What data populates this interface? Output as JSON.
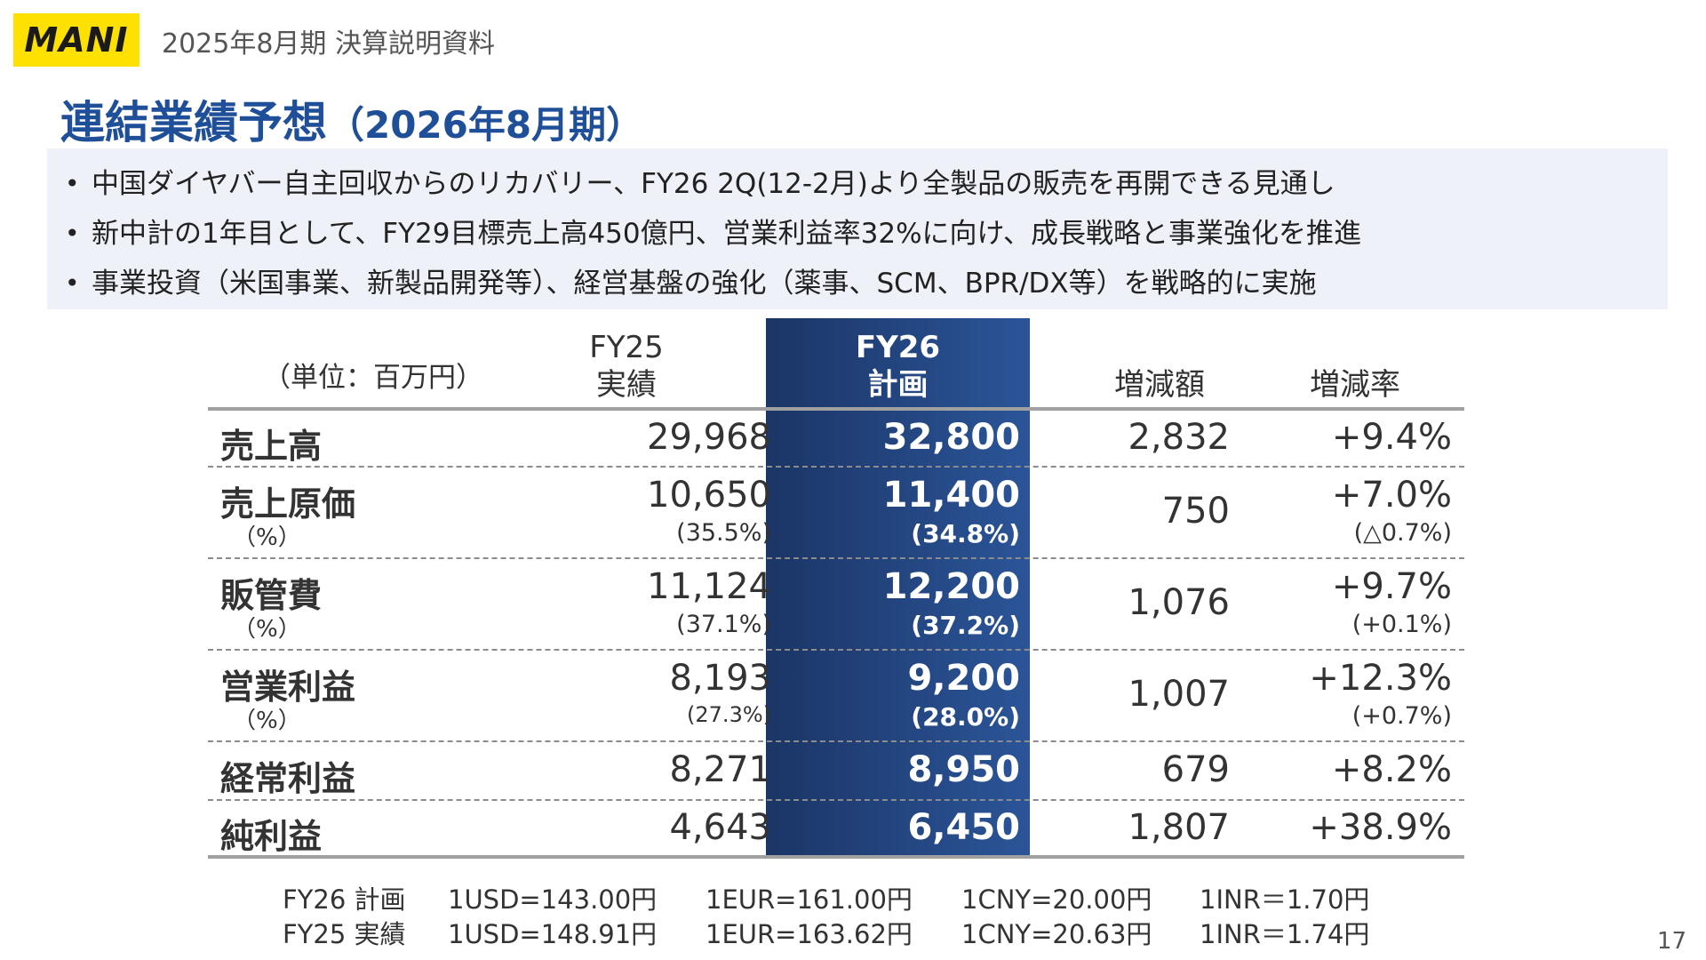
{
  "header": {
    "logo_text": "MANI",
    "document_title": "2025年8月期 決算説明資料"
  },
  "page": {
    "title": "連結業績予想",
    "title_sub": "（2026年8月期）",
    "page_number": "17"
  },
  "bullets": [
    "中国ダイヤバー自主回収からのリカバリー、FY26 2Q(12-2月)より全製品の販売を再開できる見通し",
    "新中計の1年目として、FY29目標売上高450億円、営業利益率32%に向け、成長戦略と事業強化を推進",
    "事業投資（米国事業、新製品開発等）、経営基盤の強化（薬事、SCM、BPR/DX等）を戦略的に実施"
  ],
  "table": {
    "unit_label": "（単位：百万円）",
    "col_fy25_line1": "FY25",
    "col_fy25_line2": "実績",
    "col_fy26_line1": "FY26",
    "col_fy26_line2": "計画",
    "col_diff": "増減額",
    "col_rate": "増減率",
    "rows": [
      {
        "label": "売上高",
        "fy25": "29,968",
        "fy26": "32,800",
        "diff": "2,832",
        "rate": "+9.4%"
      },
      {
        "label": "売上原価",
        "pct_label": "（%）",
        "fy25": "10,650",
        "fy25_pct": "(35.5%)",
        "fy26": "11,400",
        "fy26_pct": "(34.8%)",
        "diff": "750",
        "rate": "+7.0%",
        "rate_pct": "(△0.7%)"
      },
      {
        "label": "販管費",
        "pct_label": "（%）",
        "fy25": "11,124",
        "fy25_pct": "(37.1%)",
        "fy26": "12,200",
        "fy26_pct": "(37.2%)",
        "diff": "1,076",
        "rate": "+9.7%",
        "rate_pct": "(+0.1%)"
      },
      {
        "label": "営業利益",
        "pct_label": "（%）",
        "fy25": "8,193",
        "fy25_pct": "(27.3%)",
        "fy26": "9,200",
        "fy26_pct": "(28.0%)",
        "diff": "1,007",
        "rate": "+12.3%",
        "rate_pct": "(+0.7%)"
      },
      {
        "label": "経常利益",
        "fy25": "8,271",
        "fy26": "8,950",
        "diff": "679",
        "rate": "+8.2%"
      },
      {
        "label": "純利益",
        "fy25": "4,643",
        "fy26": "6,450",
        "diff": "1,807",
        "rate": "+38.9%"
      }
    ]
  },
  "fx_rates": [
    {
      "label": "FY26 計画",
      "usd": "1USD=143.00円",
      "eur": "1EUR=161.00円",
      "cny": "1CNY=20.00円",
      "inr": "1INR＝1.70円"
    },
    {
      "label": "FY25 実績",
      "usd": "1USD=148.91円",
      "eur": "1EUR=163.62円",
      "cny": "1CNY=20.63円",
      "inr": "1INR＝1.74円"
    }
  ],
  "colors": {
    "logo_bg": "#ffe100",
    "title": "#1f4f99",
    "bullet_bg": "#eef1f8",
    "highlight_dark": "#1b3566",
    "highlight_light": "#2b5598"
  }
}
